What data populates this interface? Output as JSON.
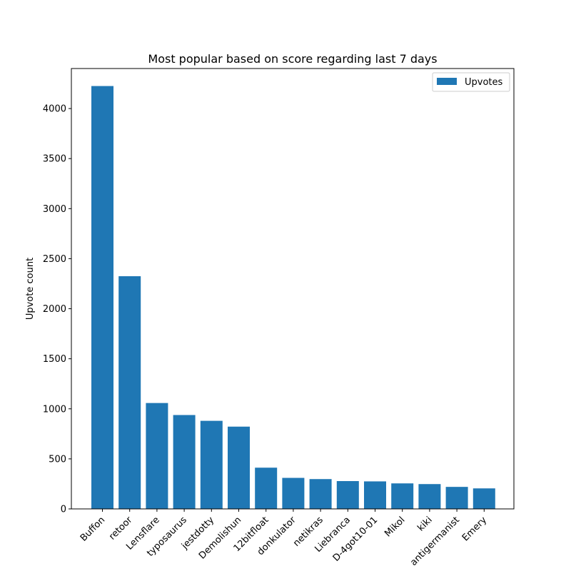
{
  "chart_data": {
    "type": "bar",
    "title": "Most popular based on score regarding last 7 days",
    "xlabel": "",
    "ylabel": "Upvote count",
    "categories": [
      "Buffon",
      "retoor",
      "Lensflare",
      "typosaurus",
      "jestdotty",
      "Demolishun",
      "12bitfloat",
      "donkulator",
      "netikras",
      "Liebranca",
      "D-4got10-01",
      "Mikol",
      "kiki",
      "antigermanist",
      "Emery"
    ],
    "series": [
      {
        "name": "Upvotes",
        "values": [
          4225,
          2325,
          1058,
          938,
          880,
          822,
          412,
          310,
          298,
          278,
          275,
          255,
          248,
          220,
          205
        ]
      }
    ],
    "ylim": [
      0,
      4400
    ],
    "yticks": [
      0,
      500,
      1000,
      1500,
      2000,
      2500,
      3000,
      3500,
      4000
    ],
    "legend": "top-right",
    "grid": false,
    "color": "#1f77b4"
  }
}
